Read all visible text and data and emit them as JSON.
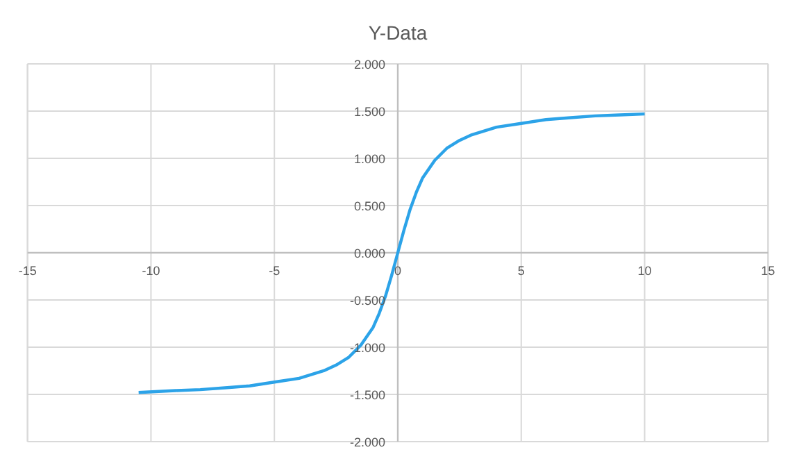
{
  "chart_data": {
    "type": "line",
    "title": "Y-Data",
    "x": [
      -10.5,
      -9,
      -8,
      -7,
      -6,
      -5,
      -4,
      -3,
      -2.5,
      -2,
      -1.5,
      -1,
      -0.75,
      -0.5,
      -0.25,
      0,
      0.25,
      0.5,
      0.75,
      1,
      1.5,
      2,
      2.5,
      3,
      4,
      5,
      6,
      7,
      8,
      9,
      10
    ],
    "series": [
      {
        "color": "#2ca3e8",
        "values": [
          -1.48,
          -1.46,
          -1.45,
          -1.43,
          -1.41,
          -1.37,
          -1.33,
          -1.25,
          -1.19,
          -1.11,
          -0.98,
          -0.79,
          -0.64,
          -0.46,
          -0.24,
          0,
          0.24,
          0.46,
          0.64,
          0.79,
          0.98,
          1.11,
          1.19,
          1.25,
          1.33,
          1.37,
          1.41,
          1.43,
          1.45,
          1.46,
          1.47
        ]
      }
    ],
    "xlim": [
      -15,
      15
    ],
    "ylim": [
      -2,
      2
    ],
    "xticks": [
      -15,
      -10,
      -5,
      0,
      5,
      10,
      15
    ],
    "yticks": [
      {
        "value": -2,
        "label": "-2.000"
      },
      {
        "value": -1.5,
        "label": "-1.500"
      },
      {
        "value": -1,
        "label": "-1.000"
      },
      {
        "value": -0.5,
        "label": "-0.500"
      },
      {
        "value": 0,
        "label": "0.000"
      },
      {
        "value": 0.5,
        "label": "0.500"
      },
      {
        "value": 1,
        "label": "1.000"
      },
      {
        "value": 1.5,
        "label": "1.500"
      },
      {
        "value": 2,
        "label": "2.000"
      }
    ],
    "grid": true,
    "marker": "none",
    "line_style": "solid"
  }
}
